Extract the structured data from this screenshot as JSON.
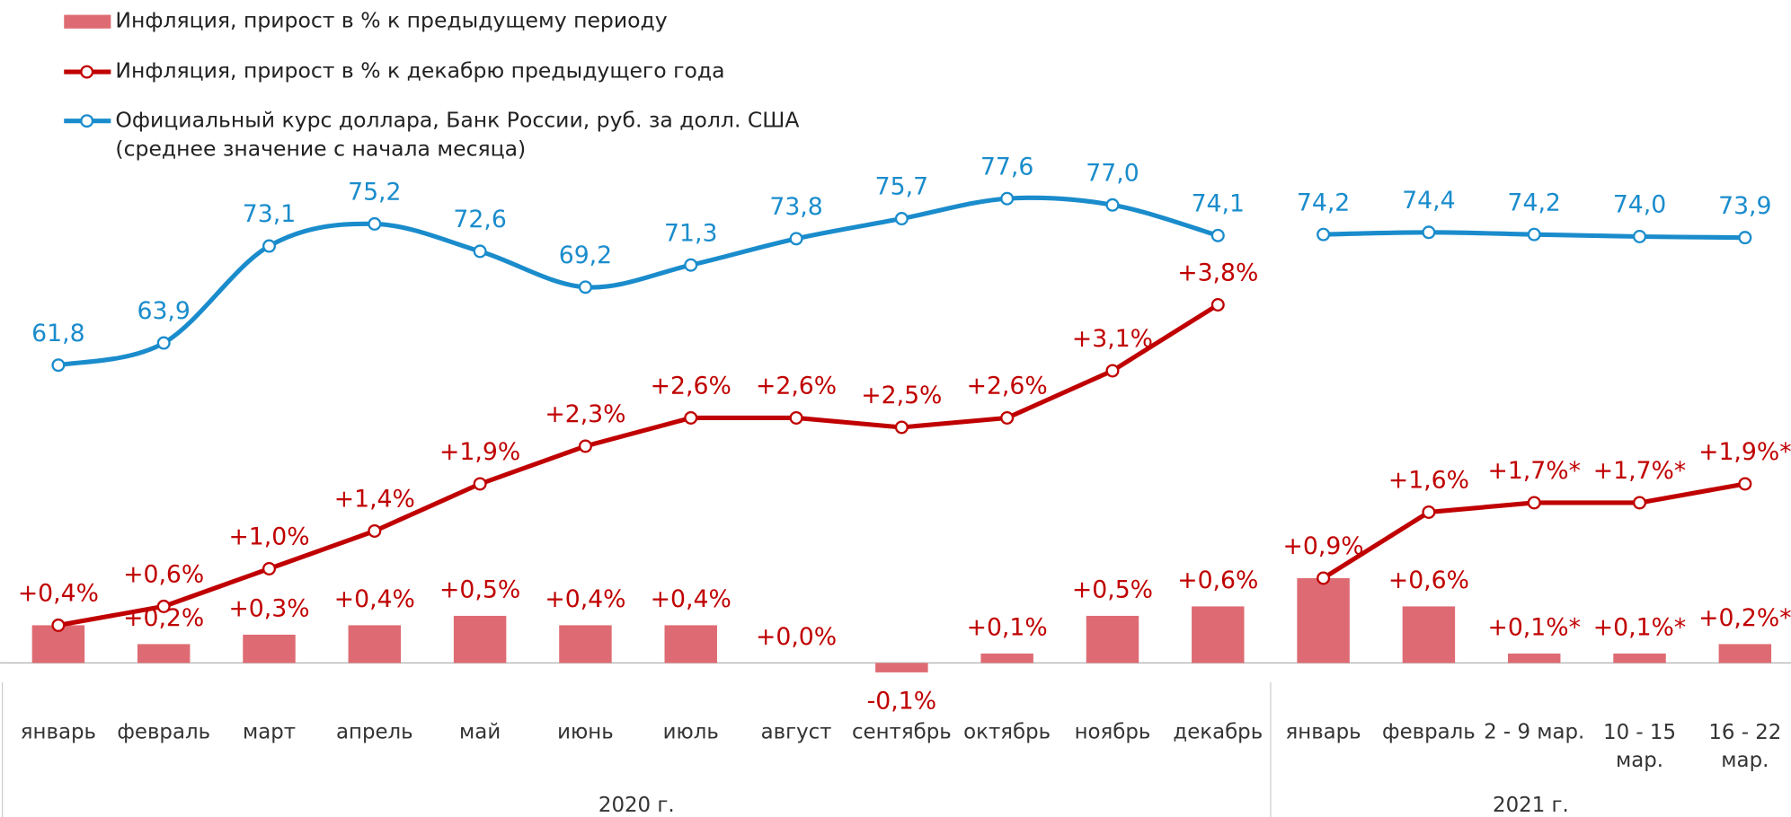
{
  "chart_data": {
    "type": "combo",
    "categories": [
      "январь",
      "февраль",
      "март",
      "апрель",
      "май",
      "июнь",
      "июль",
      "август",
      "сентябрь",
      "октябрь",
      "ноябрь",
      "декабрь",
      "январь",
      "февраль",
      "2 - 9 мар.",
      "10 - 15\nмар.",
      "16 - 22\nмар."
    ],
    "groups": [
      {
        "label": "2020 г.",
        "count": 12
      },
      {
        "label": "2021 г.",
        "count": 5
      }
    ],
    "ylim": [
      -1,
      6
    ],
    "y2lim": [
      24.6,
      87.2
    ],
    "series": [
      {
        "name": "Инфляция, прирост в % к предыдущему периоду",
        "type": "bar",
        "color": "#de6b73",
        "label_color": "#c00000",
        "values": [
          0.4,
          0.2,
          0.3,
          0.4,
          0.5,
          0.4,
          0.4,
          0.0,
          -0.1,
          0.1,
          0.5,
          0.6,
          0.9,
          0.6,
          0.1,
          0.1,
          0.2
        ],
        "value_labels": [
          null,
          "+0,2%",
          "+0,3%",
          "+0,4%",
          "+0,5%",
          "+0,4%",
          "+0,4%",
          "+0,0%",
          "-0,1%",
          "+0,1%",
          "+0,5%",
          "+0,6%",
          null,
          "+0,6%",
          "+0,1%*",
          "+0,1%*",
          "+0,2%*"
        ]
      },
      {
        "name": "Инфляция, прирост в % к декабрю предыдущего года",
        "type": "line",
        "color": "#c00000",
        "values": [
          0.4,
          0.6,
          1.0,
          1.4,
          1.9,
          2.3,
          2.6,
          2.6,
          2.5,
          2.6,
          3.1,
          3.8,
          0.9,
          1.6,
          1.7,
          1.7,
          1.9
        ],
        "value_labels": [
          "+0,4%",
          "+0,6%",
          "+1,0%",
          "+1,4%",
          "+1,9%",
          "+2,3%",
          "+2,6%",
          "+2,6%",
          "+2,5%",
          "+2,6%",
          "+3,1%",
          "+3,8%",
          "+0,9%",
          "+1,6%",
          "+1,7%*",
          "+1,7%*",
          "+1,9%*"
        ]
      },
      {
        "name": "Официальный курс доллара, Банк России, руб. за долл. США\n(среднее значение с начала месяца)",
        "type": "line",
        "axis": "y2",
        "smooth": true,
        "color": "#1a8ccc",
        "values": [
          61.8,
          63.9,
          73.1,
          75.2,
          72.6,
          69.2,
          71.3,
          73.8,
          75.7,
          77.6,
          77.0,
          74.1,
          74.2,
          74.4,
          74.2,
          74.0,
          73.9
        ],
        "value_labels": [
          "61,8",
          "63,9",
          "73,1",
          "75,2",
          "72,6",
          "69,2",
          "71,3",
          "73,8",
          "75,7",
          "77,6",
          "77,0",
          "74,1",
          "74,2",
          "74,4",
          "74,2",
          "74,0",
          "73,9"
        ]
      }
    ]
  }
}
